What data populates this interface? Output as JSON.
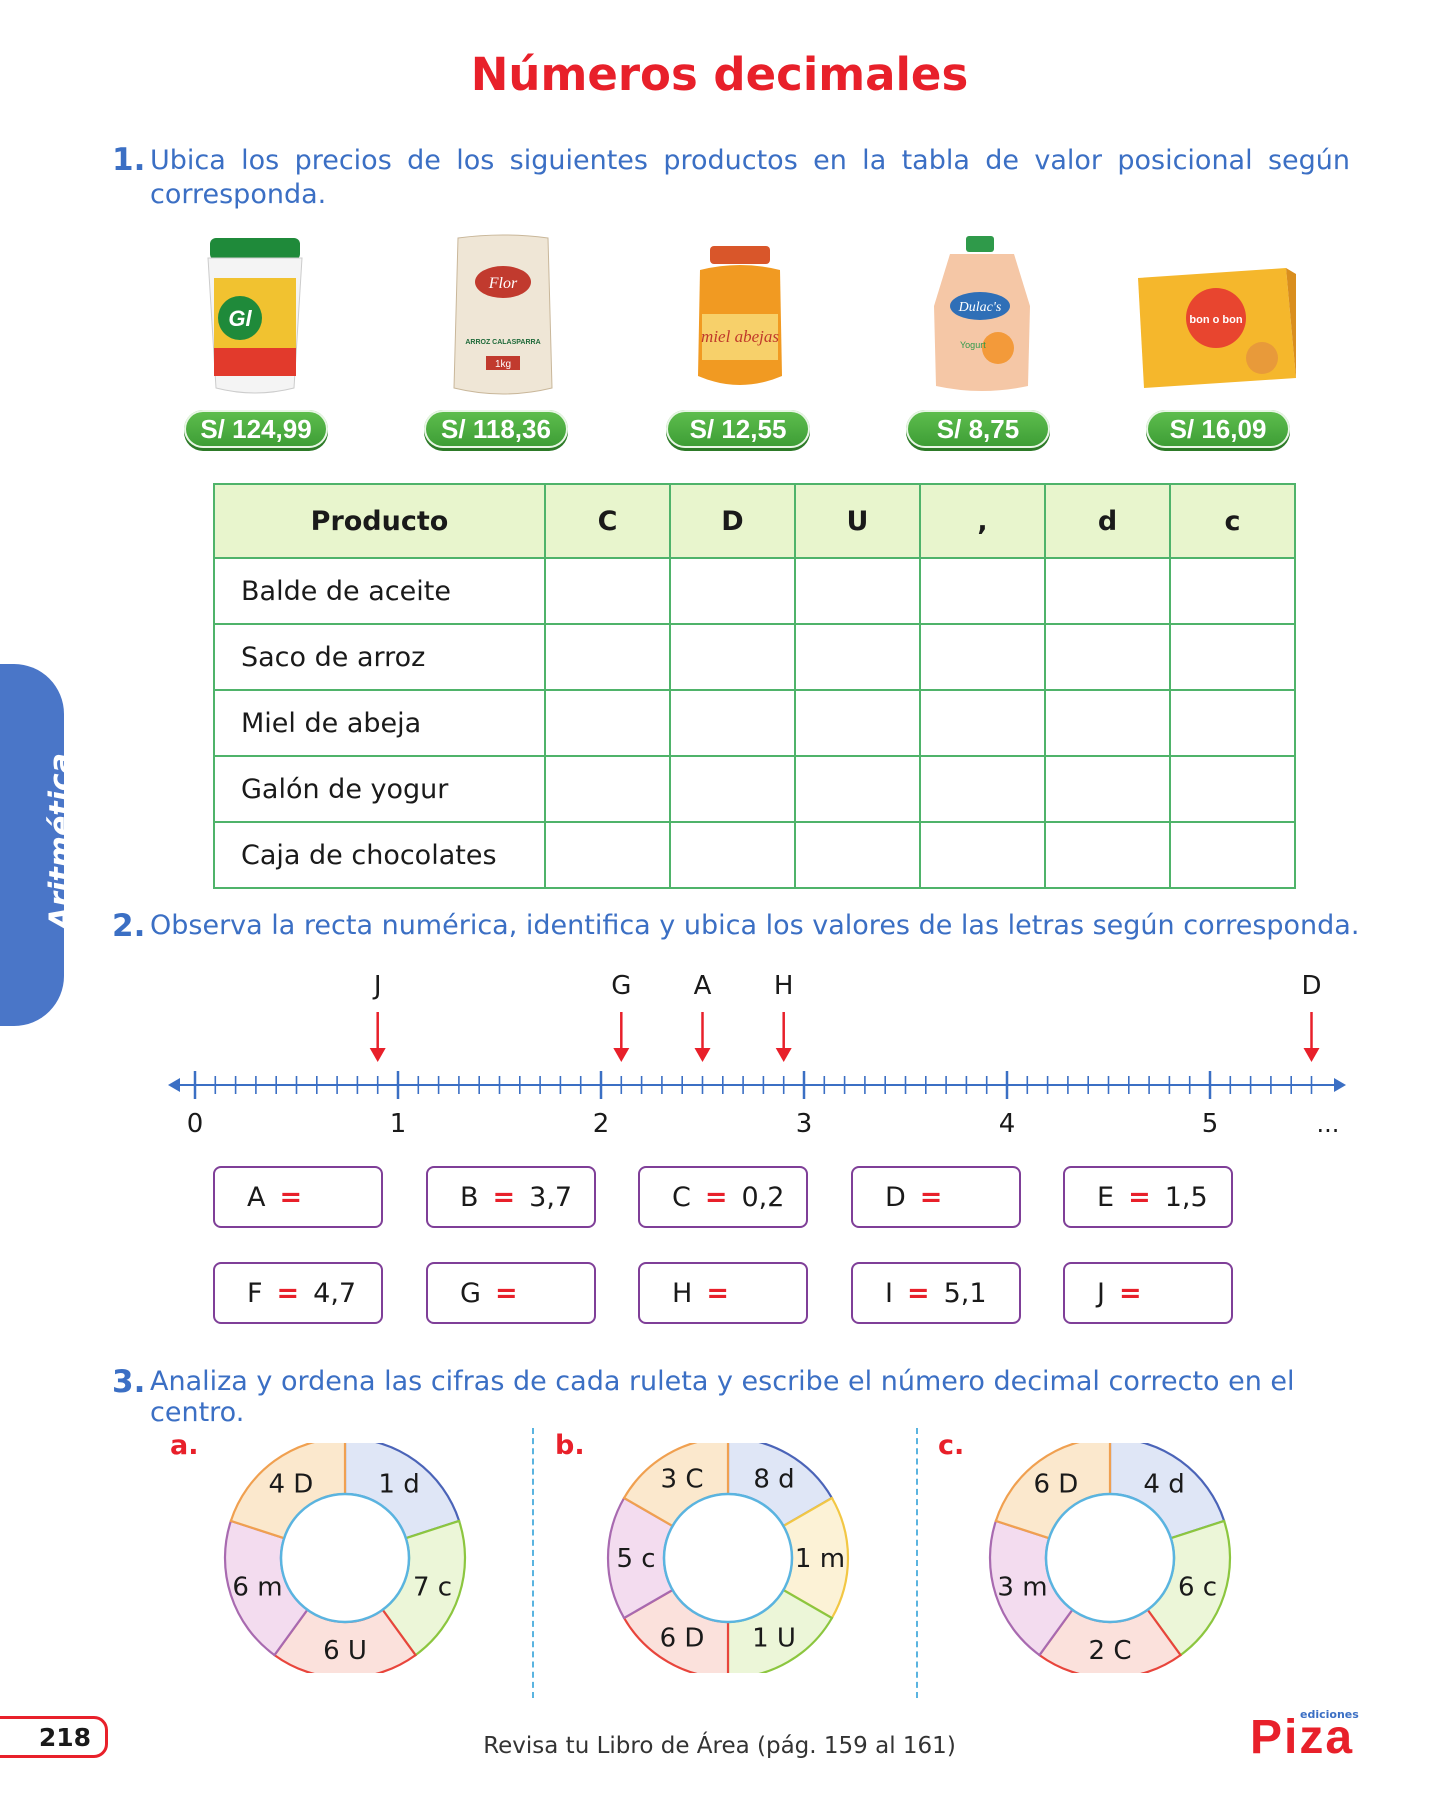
{
  "title": "Números decimales",
  "side_tab": "Aritmética",
  "q1": {
    "number": "1.",
    "text": "Ubica los precios de los siguientes productos en la tabla de valor posicional según corresponda.",
    "prices": [
      "S/ 124,99",
      "S/ 118,36",
      "S/ 12,55",
      "S/ 8,75",
      "S/ 16,09"
    ],
    "product_art": {
      "oil_brand": "Gl",
      "rice_brand": "Flor",
      "rice_text": "ARROZ CALASPARRA",
      "rice_weight": "1kg",
      "honey_text": "miel abejas",
      "yogurt_brand": "Dulac's",
      "yogurt_text": "Yogurt",
      "choco_text": "bon o bon"
    },
    "table": {
      "headers": [
        "Producto",
        "C",
        "D",
        "U",
        ",",
        "d",
        "c"
      ],
      "rows": [
        "Balde de aceite",
        "Saco de arroz",
        "Miel de abeja",
        "Galón de yogur",
        "Caja de chocolates"
      ]
    }
  },
  "q2": {
    "number": "2.",
    "text": "Observa la recta numérica, identifica y ubica los valores de las letras según corresponda.",
    "markers": [
      {
        "label": "J",
        "value": 0.9
      },
      {
        "label": "G",
        "value": 2.1
      },
      {
        "label": "A",
        "value": 2.5
      },
      {
        "label": "H",
        "value": 2.9
      },
      {
        "label": "D",
        "value": 5.5
      }
    ],
    "axis_labels": [
      "0",
      "1",
      "2",
      "3",
      "4",
      "5"
    ],
    "ellipsis": "...",
    "eq": "=",
    "boxes": [
      {
        "letter": "A",
        "value": ""
      },
      {
        "letter": "B",
        "value": "3,7"
      },
      {
        "letter": "C",
        "value": "0,2"
      },
      {
        "letter": "D",
        "value": ""
      },
      {
        "letter": "E",
        "value": "1,5"
      },
      {
        "letter": "F",
        "value": "4,7"
      },
      {
        "letter": "G",
        "value": ""
      },
      {
        "letter": "H",
        "value": ""
      },
      {
        "letter": "I",
        "value": "5,1"
      },
      {
        "letter": "J",
        "value": ""
      }
    ]
  },
  "q3": {
    "number": "3.",
    "text": "Analiza y ordena las cifras de cada ruleta y escribe el número decimal correcto en el centro.",
    "roulettes": [
      {
        "label": "a.",
        "segments": [
          "1 d",
          "7 c",
          "6 U",
          "6 m",
          "4 D"
        ]
      },
      {
        "label": "b.",
        "segments": [
          "8 d",
          "1 m",
          "1 U",
          "6 D",
          "5 c",
          "3 C"
        ]
      },
      {
        "label": "c.",
        "segments": [
          "4 d",
          "6 c",
          "2 C",
          "3 m",
          "6 D"
        ]
      }
    ],
    "segment_colors": {
      "a": [
        "#dfe6f6",
        "#ecf6d8",
        "#fbe1dc",
        "#f3dcef",
        "#fbe8cd"
      ],
      "a_stroke": [
        "#4b64b8",
        "#8cc63f",
        "#e8453c",
        "#a86ab0",
        "#f0a050"
      ],
      "b": [
        "#dfe6f6",
        "#fcf2d6",
        "#ecf6d8",
        "#fbe1dc",
        "#f3dcef",
        "#fbe8cd"
      ],
      "b_stroke": [
        "#4b64b8",
        "#f2c744",
        "#8cc63f",
        "#e8453c",
        "#a86ab0",
        "#f0a050"
      ],
      "c": [
        "#dfe6f6",
        "#ecf6d8",
        "#fbe1dc",
        "#f3dcef",
        "#fbe8cd"
      ],
      "c_stroke": [
        "#4b64b8",
        "#8cc63f",
        "#e8453c",
        "#a86ab0",
        "#f0a050"
      ]
    }
  },
  "footer": {
    "page_number": "218",
    "text": "Revisa tu Libro de Área (pág. 159 al 161)",
    "logo_small": "ediciones",
    "logo": "Piza"
  }
}
